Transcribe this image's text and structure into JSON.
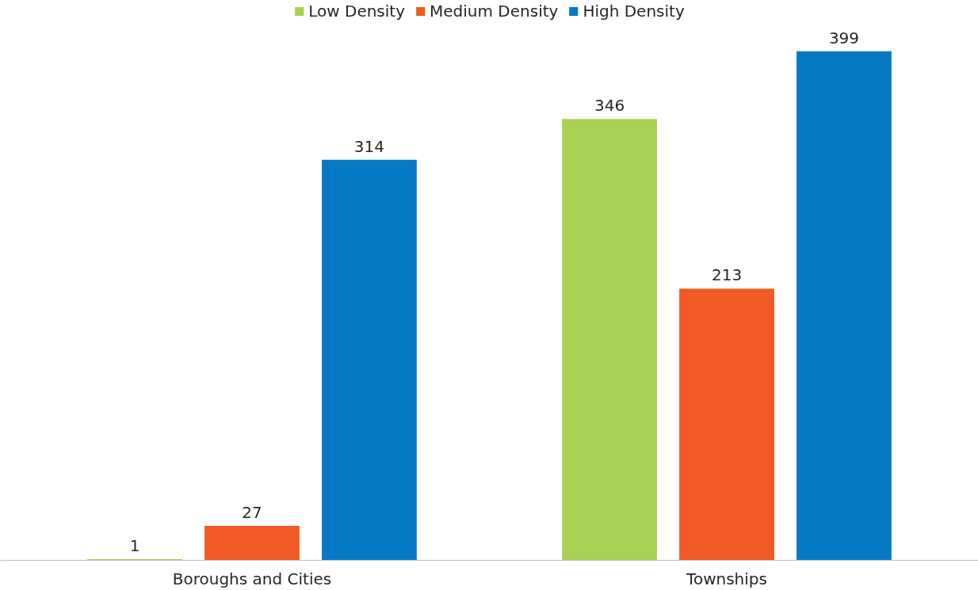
{
  "chart_data": {
    "type": "bar",
    "categories": [
      "Boroughs and Cities",
      "Townships"
    ],
    "series": [
      {
        "name": "Low Density",
        "color": "#a9d255",
        "values": [
          1,
          346
        ]
      },
      {
        "name": "Medium Density",
        "color": "#f15a24",
        "values": [
          27,
          213
        ]
      },
      {
        "name": "High Density",
        "color": "#0779c4",
        "values": [
          314,
          399
        ]
      }
    ],
    "data_labels": true,
    "legend": "top",
    "grid": false
  }
}
